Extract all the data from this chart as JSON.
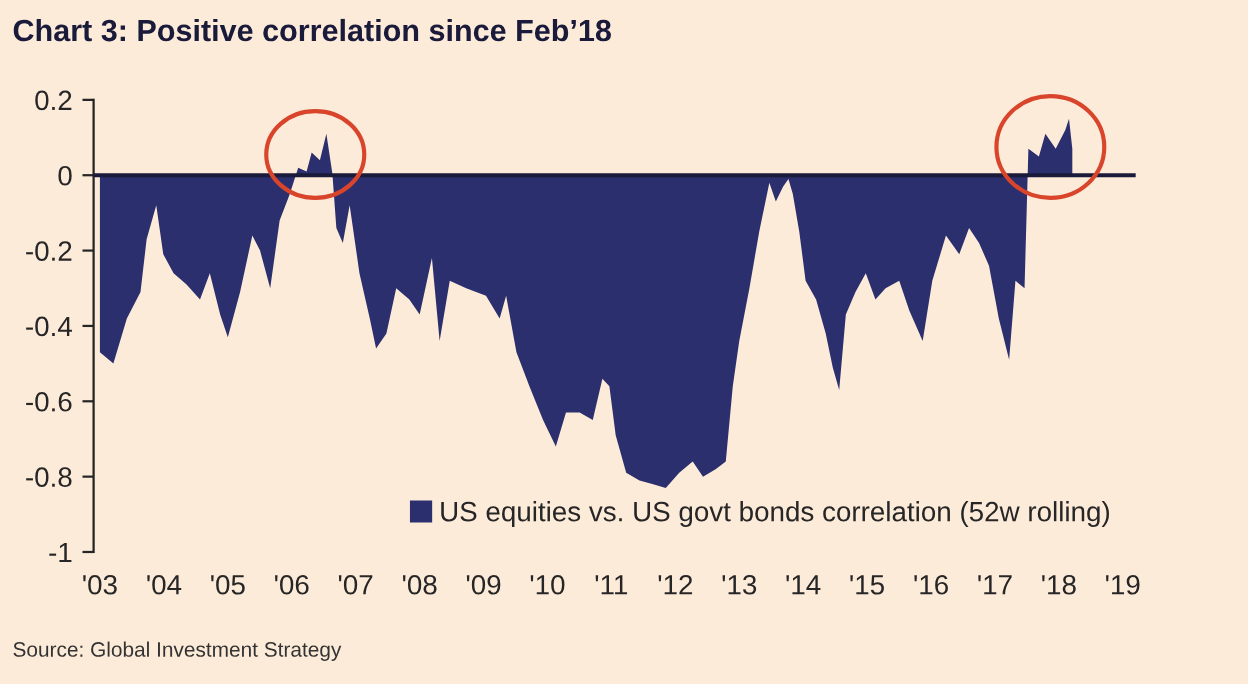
{
  "chart_data": {
    "type": "area",
    "title": "Chart 3: Positive correlation since Feb’18",
    "annotations": [
      "Source: Global Investment Strategy"
    ],
    "x": [
      "2003-07-01",
      "2003-09-16",
      "2003-12-02",
      "2004-02-18",
      "2004-03-24",
      "2004-05-18",
      "2004-06-27",
      "2004-08-25",
      "2004-11-07",
      "2005-01-23",
      "2005-03-20",
      "2005-05-18",
      "2005-07-01",
      "2005-09-09",
      "2005-11-18",
      "2006-01-01",
      "2006-02-28",
      "2006-04-23",
      "2006-06-20",
      "2006-08-07",
      "2006-09-24",
      "2006-10-23",
      "2006-12-09",
      "2007-01-15",
      "2007-02-18",
      "2007-03-13",
      "2007-04-19",
      "2007-05-28",
      "2007-07-23",
      "2007-09-20",
      "2007-10-26",
      "2007-12-24",
      "2008-02-18",
      "2008-05-03",
      "2008-07-01",
      "2008-09-09",
      "2008-10-23",
      "2008-12-20",
      "2009-03-24",
      "2009-07-15",
      "2009-10-01",
      "2009-11-07",
      "2010-01-05",
      "2010-03-20",
      "2010-06-06",
      "2010-08-18",
      "2010-10-15",
      "2011-01-01",
      "2011-03-17",
      "2011-05-11",
      "2011-06-20",
      "2011-07-26",
      "2011-09-24",
      "2011-12-09",
      "2012-02-25",
      "2012-05-07",
      "2012-07-23",
      "2012-10-08",
      "2012-12-06",
      "2013-02-18",
      "2013-04-15",
      "2013-05-25",
      "2013-07-01",
      "2013-08-28",
      "2013-10-23",
      "2013-12-20",
      "2014-01-26",
      "2014-03-09",
      "2014-04-08",
      "2014-05-03",
      "2014-06-09",
      "2014-07-15",
      "2014-09-13",
      "2014-11-07",
      "2014-12-17",
      "2015-01-23",
      "2015-03-02",
      "2015-04-26",
      "2015-06-24",
      "2015-08-18",
      "2015-10-15",
      "2016-01-01",
      "2016-02-28",
      "2016-05-14",
      "2016-07-08",
      "2016-09-24",
      "2016-12-09",
      "2017-02-03",
      "2017-04-01",
      "2017-05-28",
      "2017-07-23",
      "2017-09-20",
      "2017-10-26",
      "2017-12-17",
      "2018-01-08",
      "2018-03-09",
      "2018-04-15",
      "2018-06-13",
      "2018-08-07",
      "2018-08-28",
      "2018-09-16"
    ],
    "series": [
      {
        "name": "US equities vs. US govt bonds correlation (52w rolling)",
        "color": "#2b2f6e",
        "values": [
          -0.47,
          -0.5,
          -0.38,
          -0.31,
          -0.17,
          -0.08,
          -0.21,
          -0.26,
          -0.29,
          -0.33,
          -0.26,
          -0.37,
          -0.43,
          -0.31,
          -0.16,
          -0.2,
          -0.3,
          -0.12,
          -0.05,
          0.02,
          0.01,
          0.06,
          0.04,
          0.11,
          0.005,
          -0.14,
          -0.18,
          -0.08,
          -0.26,
          -0.38,
          -0.46,
          -0.42,
          -0.3,
          -0.33,
          -0.37,
          -0.22,
          -0.44,
          -0.28,
          -0.3,
          -0.32,
          -0.38,
          -0.32,
          -0.47,
          -0.56,
          -0.65,
          -0.72,
          -0.63,
          -0.63,
          -0.65,
          -0.54,
          -0.56,
          -0.69,
          -0.79,
          -0.81,
          -0.82,
          -0.83,
          -0.79,
          -0.76,
          -0.8,
          -0.78,
          -0.76,
          -0.56,
          -0.44,
          -0.3,
          -0.15,
          -0.02,
          -0.07,
          -0.03,
          -0.01,
          -0.05,
          -0.15,
          -0.28,
          -0.33,
          -0.42,
          -0.51,
          -0.57,
          -0.37,
          -0.31,
          -0.26,
          -0.33,
          -0.3,
          -0.28,
          -0.36,
          -0.44,
          -0.28,
          -0.16,
          -0.21,
          -0.14,
          -0.18,
          -0.24,
          -0.38,
          -0.49,
          -0.28,
          -0.3,
          0.07,
          0.05,
          0.11,
          0.07,
          0.12,
          0.15,
          0.07
        ]
      }
    ],
    "legend": "bottom right",
    "xlim": [
      "2003-05-26",
      "2019-09-13"
    ],
    "xticks": [
      {
        "value": "2003-07-01",
        "label": "'03"
      },
      {
        "value": "2004-07-01",
        "label": "'04"
      },
      {
        "value": "2005-07-01",
        "label": "'05"
      },
      {
        "value": "2006-07-01",
        "label": "'06"
      },
      {
        "value": "2007-07-01",
        "label": "'07"
      },
      {
        "value": "2008-07-01",
        "label": "'08"
      },
      {
        "value": "2009-07-01",
        "label": "'09"
      },
      {
        "value": "2010-07-01",
        "label": "'10"
      },
      {
        "value": "2011-07-01",
        "label": "'11"
      },
      {
        "value": "2012-07-01",
        "label": "'12"
      },
      {
        "value": "2013-07-01",
        "label": "'13"
      },
      {
        "value": "2014-07-01",
        "label": "'14"
      },
      {
        "value": "2015-07-01",
        "label": "'15"
      },
      {
        "value": "2016-07-01",
        "label": "'16"
      },
      {
        "value": "2017-07-01",
        "label": "'17"
      },
      {
        "value": "2018-07-01",
        "label": "'18"
      },
      {
        "value": "2019-07-01",
        "label": "'19"
      }
    ],
    "ylim": [
      -1,
      0.2
    ],
    "yticks": [
      {
        "value": -1,
        "label": "-1"
      },
      {
        "value": -0.8,
        "label": "-0.8"
      },
      {
        "value": -0.6,
        "label": "-0.6"
      },
      {
        "value": -0.4,
        "label": "-0.4"
      },
      {
        "value": -0.2,
        "label": "-0.2"
      },
      0,
      0.2
    ]
  }
}
